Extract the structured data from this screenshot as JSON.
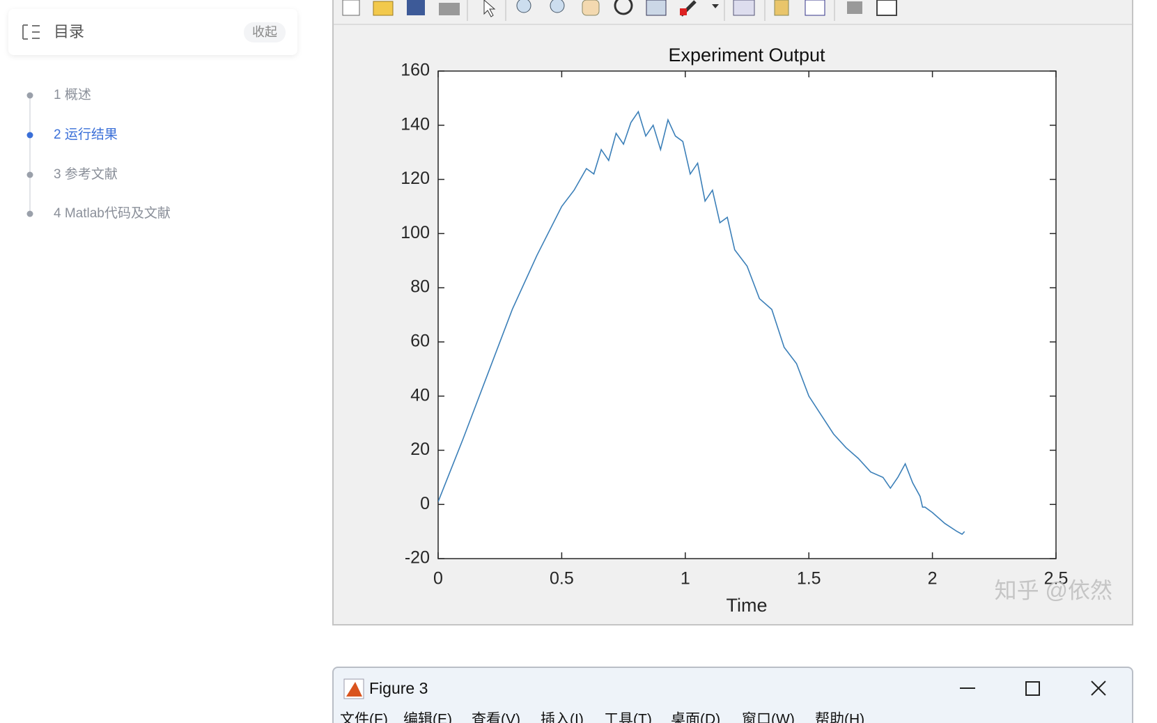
{
  "toc": {
    "title": "目录",
    "collapse": "收起",
    "items": [
      "1 概述",
      "2 运行结果",
      "3 参考文献",
      "4 Matlab代码及文献"
    ]
  },
  "chart_data": {
    "type": "line",
    "title": "Experiment Output",
    "x_label": "Time",
    "x": [
      0,
      0.1,
      0.2,
      0.3,
      0.4,
      0.5,
      0.55,
      0.6,
      0.63,
      0.66,
      0.69,
      0.72,
      0.75,
      0.78,
      0.81,
      0.84,
      0.87,
      0.9,
      0.93,
      0.96,
      0.99,
      1.02,
      1.05,
      1.08,
      1.11,
      1.14,
      1.17,
      1.2,
      1.25,
      1.3,
      1.35,
      1.4,
      1.45,
      1.5,
      1.55,
      1.6,
      1.65,
      1.7,
      1.75,
      1.8,
      1.83,
      1.86,
      1.89,
      1.92,
      1.95,
      1.96,
      1.97,
      2.0,
      2.05,
      2.1,
      2.12,
      2.13
    ],
    "series": [
      {
        "color": "#3b7fb8",
        "values": [
          1,
          24,
          48,
          72,
          92,
          110,
          116,
          124,
          122,
          131,
          127,
          137,
          133,
          141,
          145,
          136,
          140,
          131,
          142,
          136,
          134,
          122,
          126,
          112,
          116,
          104,
          106,
          94,
          88,
          76,
          72,
          58,
          52,
          40,
          33,
          26,
          21,
          17,
          12,
          10,
          6,
          10,
          15,
          8,
          3,
          -1,
          -1,
          -3,
          -7,
          -10,
          -11,
          -10
        ]
      }
    ],
    "xlim": [
      0,
      2.5
    ],
    "ylim": [
      -20,
      160
    ],
    "xticks": [
      0,
      0.5,
      1,
      1.5,
      2,
      2.5
    ],
    "yticks": [
      -20,
      0,
      20,
      40,
      60,
      80,
      100,
      120,
      140,
      160
    ]
  },
  "watermark": "知乎 @依然",
  "figure3": {
    "title": "Figure 3",
    "menu": [
      "文件(F)",
      "编辑(E)",
      "查看(V)",
      "插入(I)",
      "工具(T)",
      "桌面(D)",
      "窗口(W)",
      "帮助(H)"
    ]
  }
}
